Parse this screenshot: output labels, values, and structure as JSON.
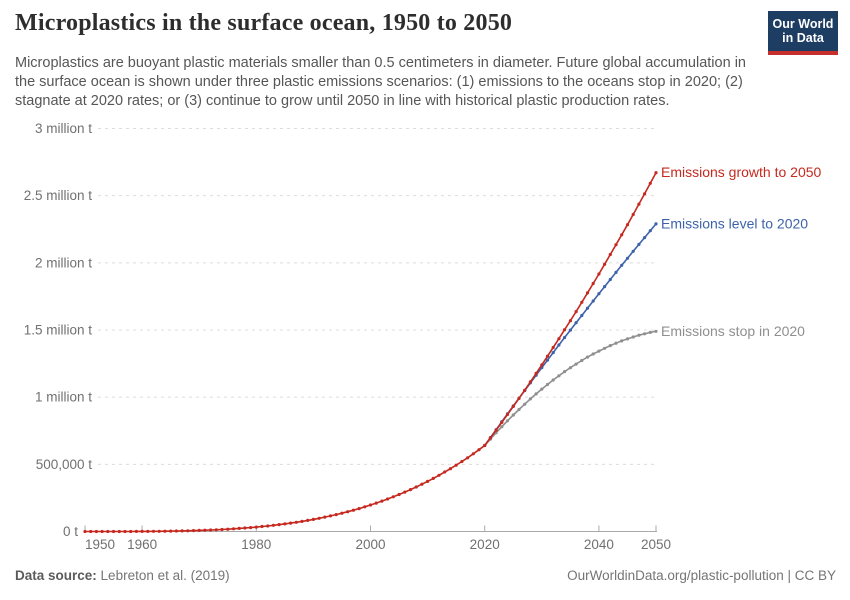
{
  "header": {
    "title": "Microplastics in the surface ocean, 1950 to 2050",
    "logo_line1": "Our World",
    "logo_line2": "in Data"
  },
  "subtitle": "Microplastics are buoyant plastic materials smaller than 0.5 centimeters in diameter. Future global accumulation in the surface ocean is shown under three plastic emissions scenarios: (1) emissions to the oceans stop in 2020; (2) stagnate at 2020 rates; or (3) continue to grow until 2050 in line with historical plastic production rates.",
  "footer": {
    "source_label": "Data source:",
    "source_value": "Lebreton et al. (2019)",
    "citation": "OurWorldinData.org/plastic-pollution | CC BY"
  },
  "colors": {
    "growth": "#c5291f",
    "level": "#3c63a9",
    "stop": "#8f8f8f",
    "gridline": "#dcdcdc",
    "axis": "#a9a9a9",
    "tick_label": "#707070"
  },
  "chart_data": {
    "type": "line",
    "title": "Microplastics in the surface ocean, 1950 to 2050",
    "unit": "t",
    "x_range": [
      1950,
      2050
    ],
    "ylim": [
      0,
      3000000
    ],
    "grid": "horizontal-dashed",
    "legend_position": "end-of-line-labels",
    "yticks": [
      {
        "value": 0,
        "label": "0 t"
      },
      {
        "value": 500000,
        "label": "500,000 t"
      },
      {
        "value": 1000000,
        "label": "1 million t"
      },
      {
        "value": 1500000,
        "label": "1.5 million t"
      },
      {
        "value": 2000000,
        "label": "2 million t"
      },
      {
        "value": 2500000,
        "label": "2.5 million t"
      },
      {
        "value": 3000000,
        "label": "3 million t"
      }
    ],
    "xticks": [
      1950,
      1960,
      1980,
      2000,
      2020,
      2040,
      2050
    ],
    "series": [
      {
        "id": "stop",
        "name": "Emissions stop in 2020",
        "color": "#8f8f8f",
        "start_year": 2020,
        "values": [
          640000,
          688000,
          735000,
          780000,
          824000,
          867000,
          908000,
          948000,
          987000,
          1024000,
          1060000,
          1094000,
          1128000,
          1159000,
          1190000,
          1219000,
          1246000,
          1273000,
          1298000,
          1321000,
          1343000,
          1364000,
          1384000,
          1402000,
          1419000,
          1434000,
          1448000,
          1461000,
          1472000,
          1482000,
          1490000
        ]
      },
      {
        "id": "level",
        "name": "Emissions level to 2020",
        "color": "#3c63a9",
        "start_year": 2020,
        "values": [
          640000,
          699000,
          758000,
          817000,
          876000,
          934000,
          992000,
          1049000,
          1106000,
          1163000,
          1220000,
          1276000,
          1332000,
          1388000,
          1444000,
          1499000,
          1554000,
          1608000,
          1662000,
          1716000,
          1770000,
          1823000,
          1876000,
          1929000,
          1982000,
          2034000,
          2086000,
          2137000,
          2188000,
          2239000,
          2290000
        ]
      },
      {
        "id": "growth",
        "name": "Emissions growth to 2050",
        "color": "#c5291f",
        "start_year": 1950,
        "values": [
          0,
          0,
          0,
          0,
          0,
          100,
          100,
          200,
          300,
          500,
          700,
          1000,
          1300,
          1800,
          2300,
          2900,
          3700,
          4500,
          5500,
          6700,
          8000,
          9500,
          11100,
          13000,
          15100,
          17400,
          20000,
          22800,
          25900,
          29300,
          33000,
          37000,
          41300,
          46000,
          51100,
          56500,
          62400,
          68700,
          75400,
          82600,
          90200,
          98400,
          107000,
          116200,
          126000,
          136300,
          147200,
          158700,
          170800,
          183600,
          197100,
          211200,
          226100,
          241700,
          258000,
          275200,
          293100,
          311800,
          331400,
          351800,
          373100,
          395300,
          418500,
          442600,
          467700,
          493800,
          520900,
          549000,
          578300,
          608600,
          640000,
          697000,
          754000,
          812000,
          871000,
          931000,
          991000,
          1052000,
          1114000,
          1177000,
          1240000,
          1305000,
          1370000,
          1435000,
          1502000,
          1569000,
          1637000,
          1706000,
          1776000,
          1846000,
          1917000,
          1989000,
          2062000,
          2135000,
          2209000,
          2284000,
          2360000,
          2437000,
          2514000,
          2592000,
          2671000
        ]
      }
    ]
  }
}
